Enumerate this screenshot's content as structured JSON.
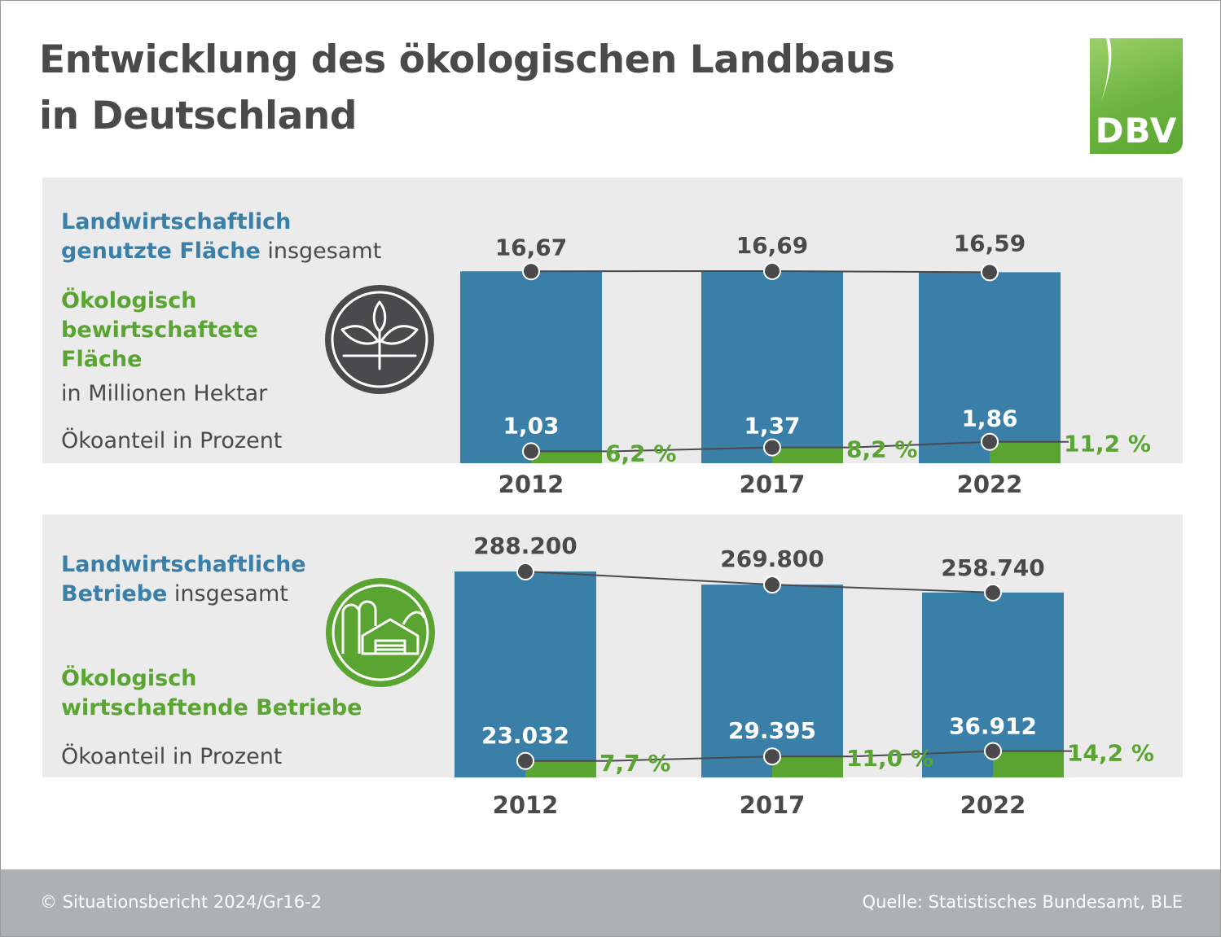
{
  "title": {
    "line1": "Entwicklung des ökologischen Landbaus",
    "line2": "in Deutschland"
  },
  "logo": {
    "text": "DBV"
  },
  "colors": {
    "blue": "#3a7fa8",
    "green": "#5aa532",
    "gray": "#4a4a4c",
    "panel": "#ebebeb",
    "footer": "#adb0b4"
  },
  "panel1": {
    "icon": "plant-icon",
    "legend": {
      "total_bold_1": "Landwirtschaftlich",
      "total_bold_2": "genutzte Fläche",
      "total_rest": " insgesamt",
      "eco_1": "Ökologisch",
      "eco_2": "bewirtschaftete",
      "eco_3": "Fläche",
      "unit": "in Millionen Hektar",
      "share": "Ökoanteil in Prozent"
    }
  },
  "panel2": {
    "icon": "farm-building-icon",
    "legend": {
      "total_bold_1": "Landwirtschaftliche",
      "total_bold_2": "Betriebe",
      "total_rest": " insgesamt",
      "eco_1": "Ökologisch",
      "eco_2": "wirtschaftende Betriebe",
      "share": "Ökoanteil in Prozent"
    }
  },
  "chart_data": [
    {
      "type": "bar",
      "categories": [
        "2012",
        "2017",
        "2022"
      ],
      "series": [
        {
          "name": "Landwirtschaftlich genutzte Fläche insgesamt",
          "values": [
            16.67,
            16.69,
            16.59
          ],
          "labels": [
            "16,67",
            "16,69",
            "16,59"
          ]
        },
        {
          "name": "Ökologisch bewirtschaftete Fläche",
          "values": [
            1.03,
            1.37,
            1.86
          ],
          "labels": [
            "1,03",
            "1,37",
            "1,86"
          ]
        },
        {
          "name": "Ökoanteil in Prozent",
          "values": [
            6.2,
            8.2,
            11.2
          ],
          "labels": [
            "6,2 %",
            "8,2 %",
            "11,2 %"
          ]
        }
      ],
      "ylabel": "in Millionen Hektar"
    },
    {
      "type": "bar",
      "categories": [
        "2012",
        "2017",
        "2022"
      ],
      "series": [
        {
          "name": "Landwirtschaftliche Betriebe insgesamt",
          "values": [
            288200,
            269800,
            258740
          ],
          "labels": [
            "288.200",
            "269.800",
            "258.740"
          ]
        },
        {
          "name": "Ökologisch wirtschaftende Betriebe",
          "values": [
            23032,
            29395,
            36912
          ],
          "labels": [
            "23.032",
            "29.395",
            "36.912"
          ]
        },
        {
          "name": "Ökoanteil in Prozent",
          "values": [
            7.7,
            11.0,
            14.2
          ],
          "labels": [
            "7,7 %",
            "11,0 %",
            "14,2 %"
          ]
        }
      ]
    }
  ],
  "footer": {
    "left": "© Situationsbericht 2024/Gr16-2",
    "right": "Quelle: Statistisches Bundesamt, BLE"
  }
}
